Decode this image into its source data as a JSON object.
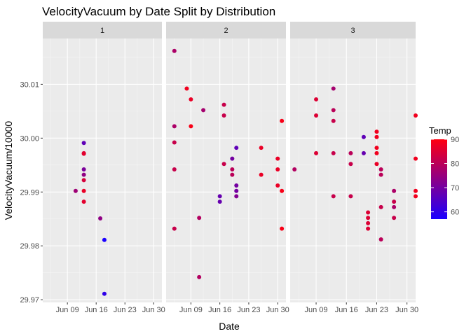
{
  "chart_data": {
    "type": "scatter",
    "title": "VelocityVacuum by Date Split by Distribution",
    "xlabel": "Date",
    "ylabel": "VelocityVacuum/10000",
    "x_ticks": [
      "Jun 09",
      "Jun 16",
      "Jun 23",
      "Jun 30"
    ],
    "y_ticks": [
      "29.97",
      "29.98",
      "29.99",
      "30.00",
      "30.01"
    ],
    "ylim": [
      29.9695,
      30.0185
    ],
    "xlim": [
      "2019-06-03",
      "2019-07-02"
    ],
    "grid": true,
    "legend": {
      "title": "Temp",
      "position": "right",
      "min": 57,
      "max": 90,
      "ticks": [
        "60",
        "70",
        "80",
        "90"
      ],
      "colors": [
        "#1a00ff",
        "#ff0010"
      ]
    },
    "facets": [
      {
        "label": "1",
        "points": [
          {
            "x": "2019-06-11",
            "y": 29.9902,
            "temp": 76
          },
          {
            "x": "2019-06-13",
            "y": 29.9991,
            "temp": 67
          },
          {
            "x": "2019-06-13",
            "y": 29.9972,
            "temp": 85
          },
          {
            "x": "2019-06-13",
            "y": 29.9971,
            "temp": 86
          },
          {
            "x": "2019-06-13",
            "y": 29.9942,
            "temp": 71
          },
          {
            "x": "2019-06-13",
            "y": 29.9932,
            "temp": 74
          },
          {
            "x": "2019-06-13",
            "y": 29.9922,
            "temp": 84
          },
          {
            "x": "2019-06-13",
            "y": 29.9902,
            "temp": 87
          },
          {
            "x": "2019-06-13",
            "y": 29.9882,
            "temp": 86
          },
          {
            "x": "2019-06-17",
            "y": 29.9851,
            "temp": 74
          },
          {
            "x": "2019-06-18",
            "y": 29.9811,
            "temp": 57
          },
          {
            "x": "2019-06-18",
            "y": 29.9711,
            "temp": 60
          }
        ]
      },
      {
        "label": "2",
        "points": [
          {
            "x": "2019-06-05",
            "y": 30.0162,
            "temp": 78
          },
          {
            "x": "2019-06-05",
            "y": 30.0022,
            "temp": 78
          },
          {
            "x": "2019-06-05",
            "y": 29.9992,
            "temp": 82
          },
          {
            "x": "2019-06-05",
            "y": 29.9942,
            "temp": 82
          },
          {
            "x": "2019-06-05",
            "y": 29.9832,
            "temp": 82
          },
          {
            "x": "2019-06-08",
            "y": 30.0092,
            "temp": 88
          },
          {
            "x": "2019-06-09",
            "y": 30.0072,
            "temp": 87
          },
          {
            "x": "2019-06-09",
            "y": 30.0022,
            "temp": 89
          },
          {
            "x": "2019-06-11",
            "y": 29.9852,
            "temp": 79
          },
          {
            "x": "2019-06-11",
            "y": 29.9742,
            "temp": 79
          },
          {
            "x": "2019-06-12",
            "y": 30.0052,
            "temp": 77
          },
          {
            "x": "2019-06-16",
            "y": 29.9892,
            "temp": 68
          },
          {
            "x": "2019-06-16",
            "y": 29.9882,
            "temp": 68
          },
          {
            "x": "2019-06-17",
            "y": 30.0062,
            "temp": 82
          },
          {
            "x": "2019-06-17",
            "y": 30.0042,
            "temp": 82
          },
          {
            "x": "2019-06-17",
            "y": 29.9952,
            "temp": 82
          },
          {
            "x": "2019-06-19",
            "y": 29.9962,
            "temp": 70
          },
          {
            "x": "2019-06-19",
            "y": 29.9942,
            "temp": 80
          },
          {
            "x": "2019-06-19",
            "y": 29.9932,
            "temp": 80
          },
          {
            "x": "2019-06-20",
            "y": 29.9982,
            "temp": 67
          },
          {
            "x": "2019-06-20",
            "y": 29.9912,
            "temp": 70
          },
          {
            "x": "2019-06-20",
            "y": 29.9902,
            "temp": 70
          },
          {
            "x": "2019-06-20",
            "y": 29.9892,
            "temp": 72
          },
          {
            "x": "2019-06-26",
            "y": 29.9982,
            "temp": 87
          },
          {
            "x": "2019-06-26",
            "y": 29.9932,
            "temp": 87
          },
          {
            "x": "2019-06-30",
            "y": 29.9962,
            "temp": 87
          },
          {
            "x": "2019-06-30",
            "y": 29.9942,
            "temp": 87
          },
          {
            "x": "2019-06-30",
            "y": 29.9912,
            "temp": 87
          },
          {
            "x": "2019-07-01",
            "y": 30.0032,
            "temp": 89
          },
          {
            "x": "2019-07-01",
            "y": 29.9902,
            "temp": 89
          },
          {
            "x": "2019-07-01",
            "y": 29.9832,
            "temp": 89
          }
        ]
      },
      {
        "label": "3",
        "points": [
          {
            "x": "2019-06-04",
            "y": 29.9942,
            "temp": 79
          },
          {
            "x": "2019-06-09",
            "y": 30.0072,
            "temp": 85
          },
          {
            "x": "2019-06-09",
            "y": 30.0042,
            "temp": 85
          },
          {
            "x": "2019-06-09",
            "y": 29.9972,
            "temp": 85
          },
          {
            "x": "2019-06-13",
            "y": 30.0092,
            "temp": 77
          },
          {
            "x": "2019-06-13",
            "y": 30.0052,
            "temp": 80
          },
          {
            "x": "2019-06-13",
            "y": 30.0032,
            "temp": 82
          },
          {
            "x": "2019-06-13",
            "y": 29.9972,
            "temp": 82
          },
          {
            "x": "2019-06-13",
            "y": 29.9892,
            "temp": 82
          },
          {
            "x": "2019-06-17",
            "y": 29.9972,
            "temp": 80
          },
          {
            "x": "2019-06-17",
            "y": 29.9952,
            "temp": 82
          },
          {
            "x": "2019-06-17",
            "y": 29.9892,
            "temp": 82
          },
          {
            "x": "2019-06-20",
            "y": 30.0002,
            "temp": 67
          },
          {
            "x": "2019-06-20",
            "y": 29.9972,
            "temp": 68
          },
          {
            "x": "2019-06-21",
            "y": 29.9862,
            "temp": 85
          },
          {
            "x": "2019-06-21",
            "y": 29.9852,
            "temp": 85
          },
          {
            "x": "2019-06-21",
            "y": 29.9842,
            "temp": 85
          },
          {
            "x": "2019-06-21",
            "y": 29.9832,
            "temp": 85
          },
          {
            "x": "2019-06-23",
            "y": 30.0012,
            "temp": 88
          },
          {
            "x": "2019-06-23",
            "y": 30.0002,
            "temp": 88
          },
          {
            "x": "2019-06-23",
            "y": 29.9982,
            "temp": 88
          },
          {
            "x": "2019-06-23",
            "y": 29.9972,
            "temp": 88
          },
          {
            "x": "2019-06-23",
            "y": 29.9952,
            "temp": 87
          },
          {
            "x": "2019-06-24",
            "y": 29.9942,
            "temp": 80
          },
          {
            "x": "2019-06-24",
            "y": 29.9932,
            "temp": 80
          },
          {
            "x": "2019-06-24",
            "y": 29.9872,
            "temp": 82
          },
          {
            "x": "2019-06-24",
            "y": 29.9812,
            "temp": 80
          },
          {
            "x": "2019-06-27",
            "y": 29.9902,
            "temp": 78
          },
          {
            "x": "2019-06-27",
            "y": 29.9882,
            "temp": 82
          },
          {
            "x": "2019-06-27",
            "y": 29.9872,
            "temp": 78
          },
          {
            "x": "2019-06-27",
            "y": 29.9852,
            "temp": 82
          },
          {
            "x": "2019-07-02",
            "y": 30.0042,
            "temp": 88
          },
          {
            "x": "2019-07-02",
            "y": 29.9962,
            "temp": 88
          },
          {
            "x": "2019-07-02",
            "y": 29.9902,
            "temp": 88
          },
          {
            "x": "2019-07-02",
            "y": 29.9892,
            "temp": 88
          }
        ]
      }
    ]
  }
}
